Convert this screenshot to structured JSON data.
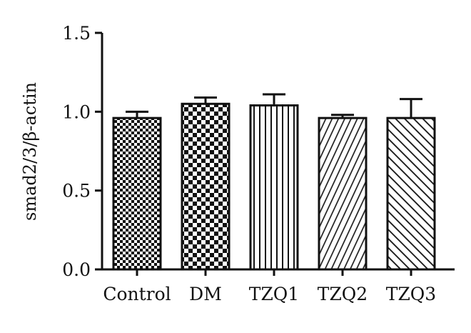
{
  "chart_data": {
    "type": "bar",
    "title": "",
    "xlabel": "",
    "ylabel": "smad2/3/β-actin",
    "ylim": [
      0,
      1.5
    ],
    "yticks": [
      "0.0",
      "0.5",
      "1.0",
      "1.5"
    ],
    "grid": false,
    "categories": [
      "Control",
      "DM",
      "TZQ1",
      "TZQ2",
      "TZQ3"
    ],
    "values": [
      0.96,
      1.05,
      1.04,
      0.96,
      0.96
    ],
    "errors": [
      0.04,
      0.04,
      0.07,
      0.02,
      0.12
    ],
    "patterns": [
      "fine-checker",
      "checker",
      "vertical-lines",
      "diagonal-fwd",
      "diagonal-back"
    ]
  }
}
